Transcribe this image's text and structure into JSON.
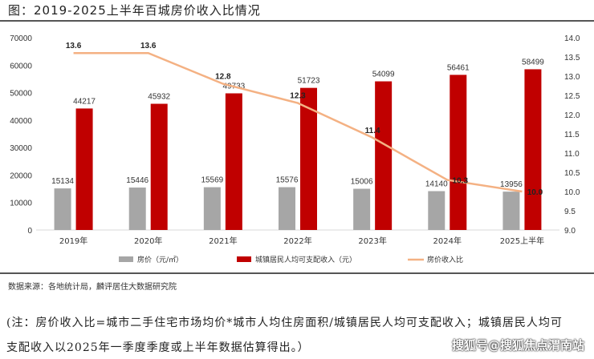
{
  "title": "图：2019-2025上半年百城房价收入比情况",
  "source": "数据来源：各地统计局，麟评居住大数据研究院",
  "note_line1": "(注：房价收入比=城市二手住宅市场均价*城市人均住房面积/城镇居民人均可支配收入；城镇居民人均可",
  "note_line2": "支配收入以2025年一季度季度或上半年数据估算得出。）",
  "watermark": "搜狐号@搜狐焦点渭南站",
  "chart_data": {
    "type": "bar",
    "categories": [
      "2019年",
      "2020年",
      "2021年",
      "2022年",
      "2023年",
      "2024年",
      "2025上半年"
    ],
    "series": [
      {
        "name": "房价（元/㎡）",
        "type": "bar",
        "axis": "left",
        "color": "#a6a6a6",
        "values": [
          15134,
          15446,
          15569,
          15576,
          15006,
          14140,
          13956
        ]
      },
      {
        "name": "城镇居民人均可支配收入（元）",
        "type": "bar",
        "axis": "left",
        "color": "#c00000",
        "values": [
          44217,
          45932,
          49733,
          51723,
          54099,
          56461,
          58499
        ]
      },
      {
        "name": "房价收入比",
        "type": "line",
        "axis": "right",
        "color": "#f4b183",
        "values": [
          13.6,
          13.6,
          12.8,
          12.3,
          11.4,
          10.3,
          10.0
        ]
      }
    ],
    "ylim": [
      0,
      70000
    ],
    "yticks": [
      "0",
      "10000",
      "20000",
      "30000",
      "40000",
      "50000",
      "60000",
      "70000"
    ],
    "y2lim": [
      9.0,
      14.0
    ],
    "y2ticks": [
      "9.0",
      "9.5",
      "10.0",
      "10.5",
      "11.0",
      "11.5",
      "12.0",
      "12.5",
      "13.0",
      "13.5",
      "14.0"
    ],
    "legend": "bottom"
  }
}
